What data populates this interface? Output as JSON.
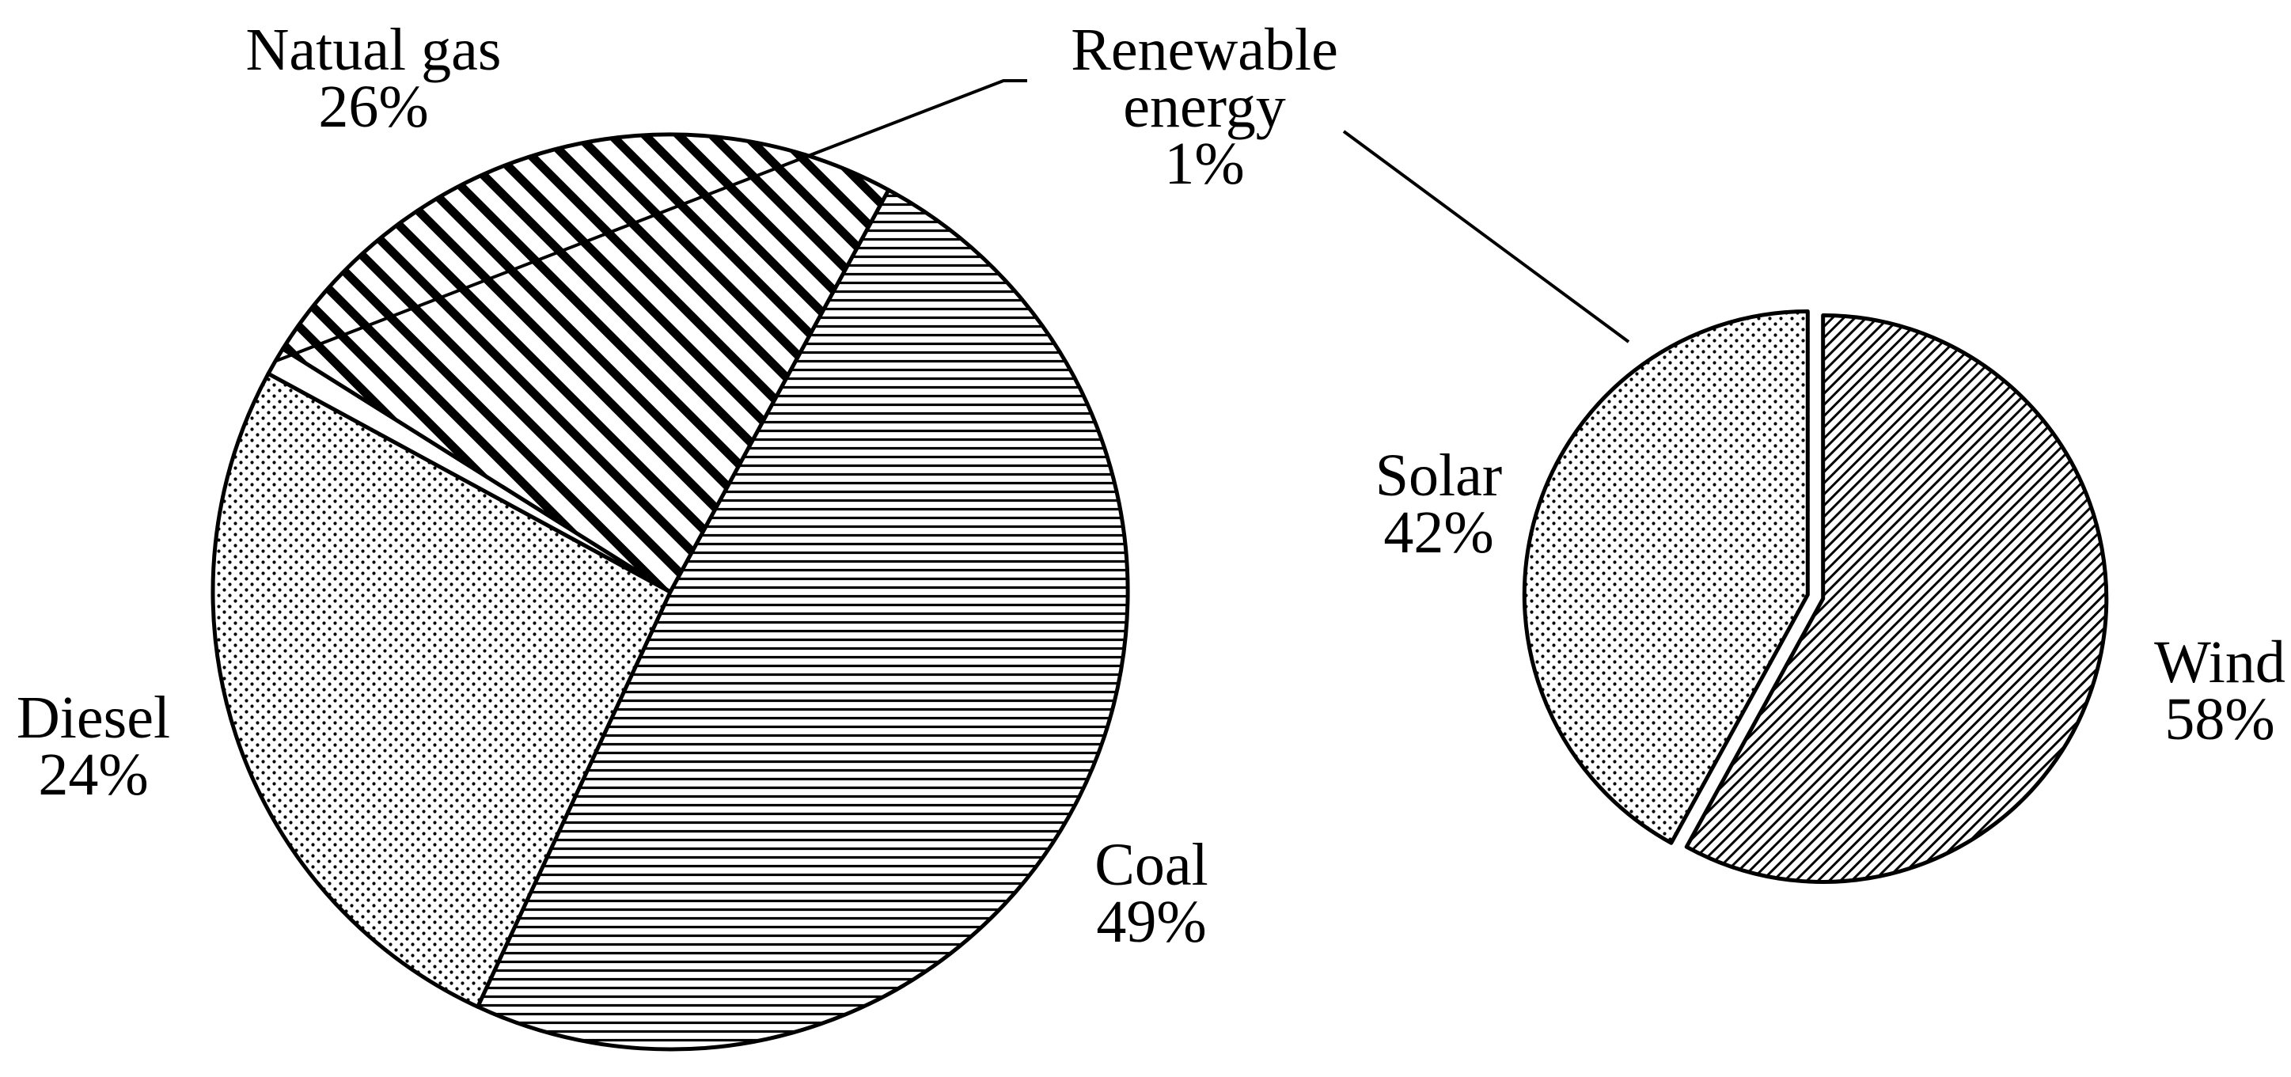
{
  "chart_data": [
    {
      "type": "pie",
      "title": "",
      "categories": [
        "Coal",
        "Natual gas",
        "Renewable energy",
        "Diesel"
      ],
      "values": [
        49,
        26,
        1,
        24
      ],
      "labels": [
        {
          "name_lines": [
            "Coal"
          ],
          "pct": "49%"
        },
        {
          "name_lines": [
            "Natual gas"
          ],
          "pct": "26%"
        },
        {
          "name_lines": [
            "Renewable",
            "energy"
          ],
          "pct": "1%"
        },
        {
          "name_lines": [
            "Diesel"
          ],
          "pct": "24%"
        }
      ],
      "patterns": [
        "horizontal-lines",
        "dots",
        "blank",
        "diagonal-stripes"
      ],
      "legend": "none"
    },
    {
      "type": "pie",
      "title": "",
      "categories": [
        "Wind",
        "Solar"
      ],
      "values": [
        58,
        42
      ],
      "labels": [
        {
          "name_lines": [
            "Wind"
          ],
          "pct": "58%"
        },
        {
          "name_lines": [
            "Solar"
          ],
          "pct": "42%"
        }
      ],
      "patterns": [
        "fine-diagonal-hatch",
        "dots"
      ],
      "legend": "none"
    }
  ],
  "colors": {
    "ink": "#000000",
    "background": "#ffffff"
  }
}
